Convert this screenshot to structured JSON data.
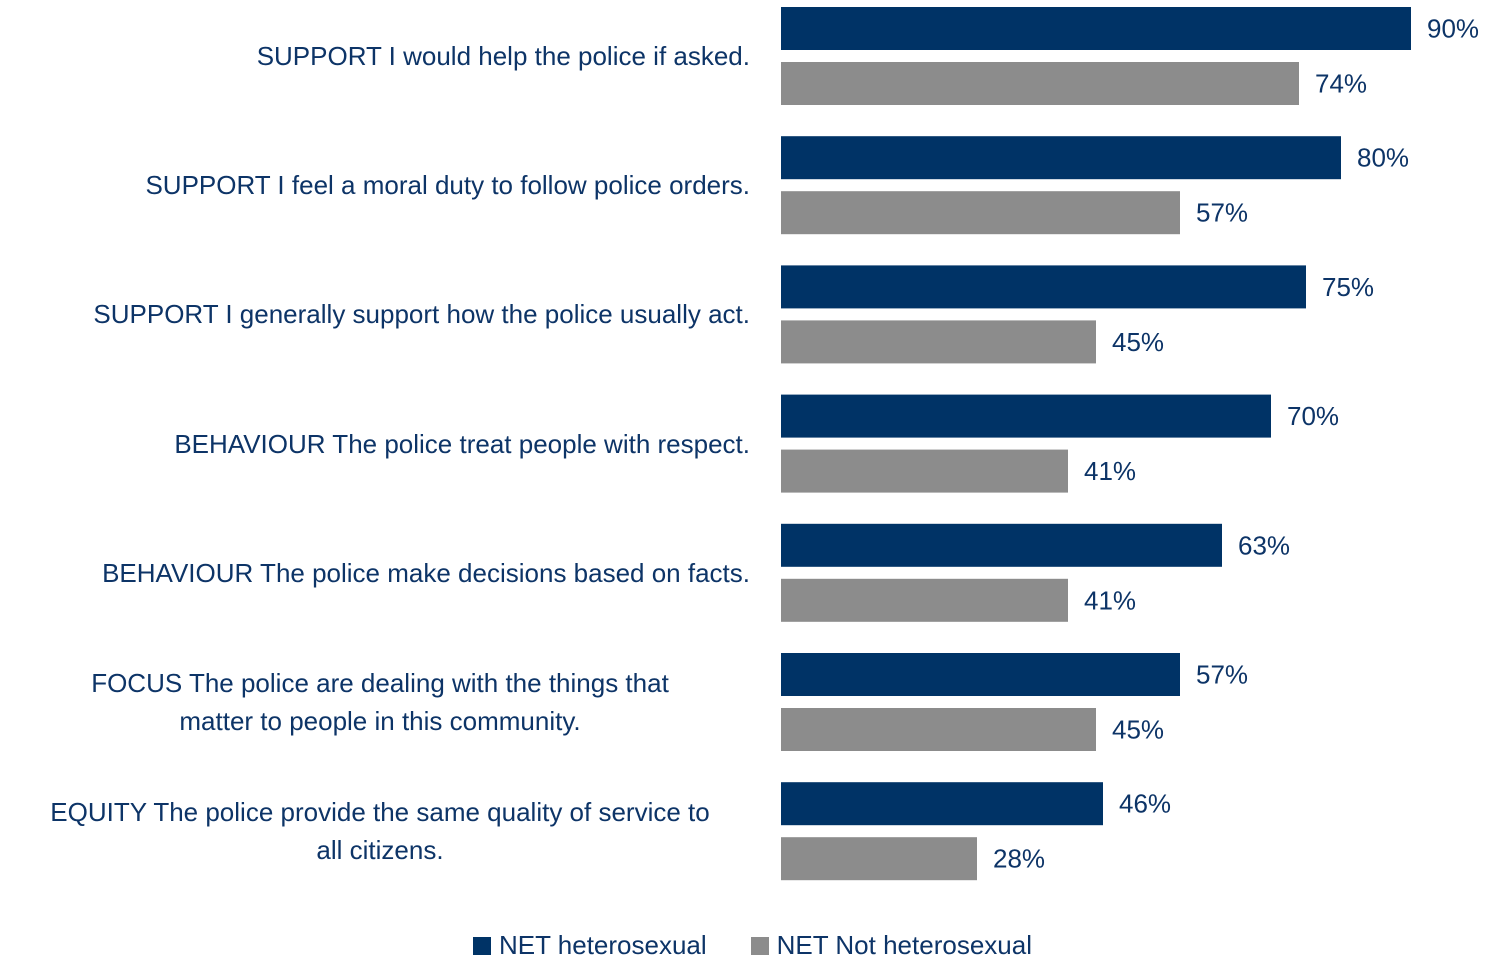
{
  "colors": {
    "series_0": "#003366",
    "series_1": "#8c8c8c",
    "label_text": "#0d3467"
  },
  "chart_data": {
    "type": "bar",
    "orientation": "horizontal",
    "categories": [
      "SUPPORT I would help the police if asked.",
      "SUPPORT I feel a moral duty to follow police orders.",
      "SUPPORT I generally support how the police usually act.",
      "BEHAVIOUR The police treat people with respect.",
      "BEHAVIOUR The police make decisions based on facts.",
      "FOCUS The police are dealing with the things that\nmatter to people in this community.",
      "EQUITY The police provide the same quality of service to\nall citizens."
    ],
    "series": [
      {
        "name": "NET heterosexual",
        "values": [
          90,
          80,
          75,
          70,
          63,
          57,
          46
        ]
      },
      {
        "name": "NET Not heterosexual",
        "values": [
          74,
          57,
          45,
          41,
          41,
          45,
          28
        ]
      }
    ],
    "value_suffix": "%",
    "xlim": [
      0,
      100
    ],
    "grid": false,
    "legend_position": "bottom"
  },
  "legend": {
    "items": [
      {
        "label": "NET heterosexual"
      },
      {
        "label": "NET Not heterosexual"
      }
    ]
  }
}
